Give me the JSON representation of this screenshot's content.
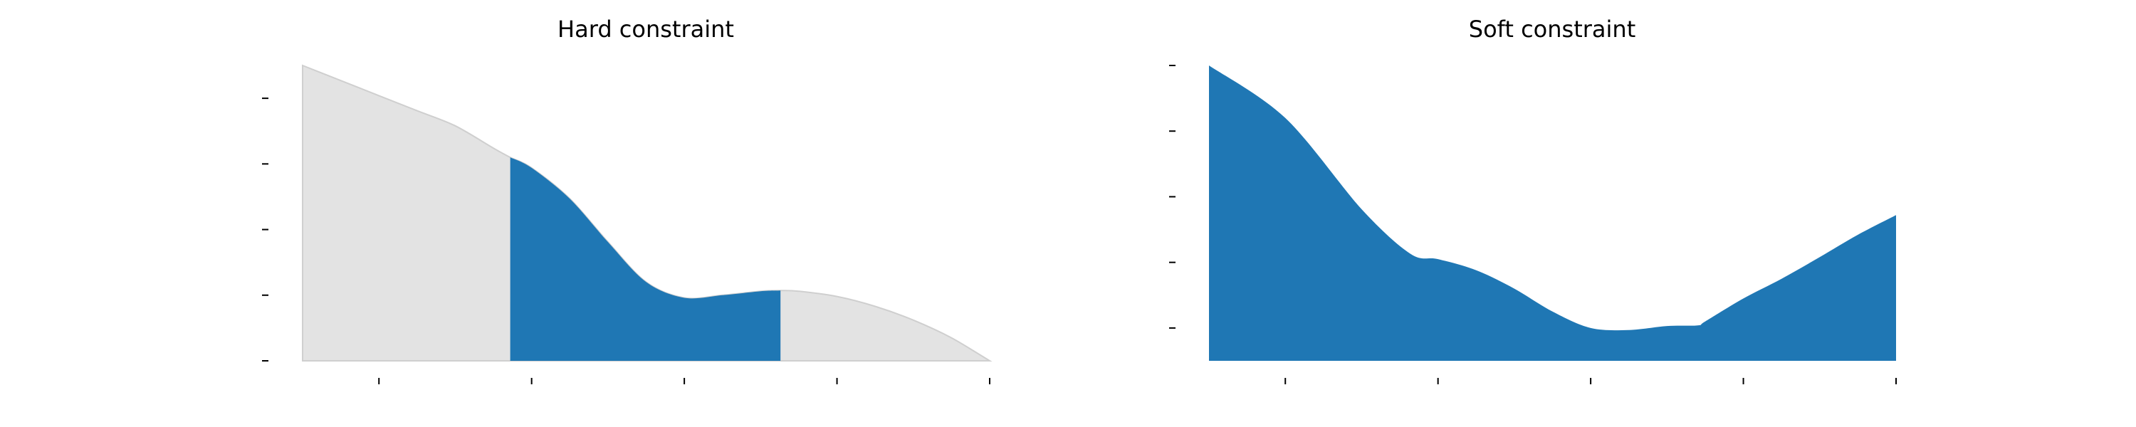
{
  "chart_data": [
    {
      "type": "area",
      "title": "Hard constraint",
      "xlabel": "",
      "ylabel": "",
      "xlim": [
        0,
        4.5
      ],
      "ylim": [
        0,
        4.5
      ],
      "x_tick_values": [
        0.5,
        1.5,
        2.5,
        3.5,
        4.5
      ],
      "y_tick_values": [
        0,
        1,
        2,
        3,
        4
      ],
      "x_tick_labels": [
        "",
        "",
        "",
        "",
        ""
      ],
      "y_tick_labels": [
        "",
        "",
        "",
        "",
        ""
      ],
      "grid": false,
      "curve": {
        "x": [
          0,
          0.25,
          0.5,
          0.75,
          1.0,
          1.25,
          1.36,
          1.5,
          1.75,
          2.0,
          2.25,
          2.5,
          2.75,
          3.0,
          3.13,
          3.25,
          3.5,
          3.75,
          4.0,
          4.25,
          4.5
        ],
        "y": [
          4.5,
          4.27,
          4.04,
          3.81,
          3.58,
          3.24,
          3.1,
          2.94,
          2.47,
          1.81,
          1.2,
          0.96,
          1.0,
          1.06,
          1.07,
          1.06,
          0.98,
          0.83,
          0.62,
          0.35,
          0.0
        ]
      },
      "highlight_x_range": [
        1.36,
        3.13
      ],
      "highlight_color": "#1f77b4",
      "background_fill_color": "#e3e3e3",
      "background_edge_color": "#cfcfcf"
    },
    {
      "type": "area",
      "title": "Soft constraint",
      "xlabel": "",
      "ylabel": "",
      "xlim": [
        0,
        4.5
      ],
      "ylim": [
        0,
        4.5
      ],
      "x_tick_values": [
        0.5,
        1.5,
        2.5,
        3.5,
        4.5
      ],
      "y_tick_values": [
        0.5,
        1.5,
        2.5,
        3.5,
        4.5
      ],
      "x_tick_labels": [
        "",
        "",
        "",
        "",
        ""
      ],
      "y_tick_labels": [
        "",
        "",
        "",
        "",
        ""
      ],
      "grid": false,
      "curve": {
        "x": [
          0,
          0.5,
          1.0,
          1.32,
          1.5,
          1.75,
          2.0,
          2.25,
          2.5,
          2.75,
          3.0,
          3.2,
          3.25,
          3.5,
          3.75,
          4.0,
          4.25,
          4.5
        ],
        "y": [
          4.5,
          3.7,
          2.31,
          1.63,
          1.55,
          1.38,
          1.1,
          0.75,
          0.5,
          0.47,
          0.53,
          0.54,
          0.6,
          0.95,
          1.25,
          1.58,
          1.92,
          2.22
        ]
      },
      "fill_color": "#1f77b4"
    }
  ]
}
